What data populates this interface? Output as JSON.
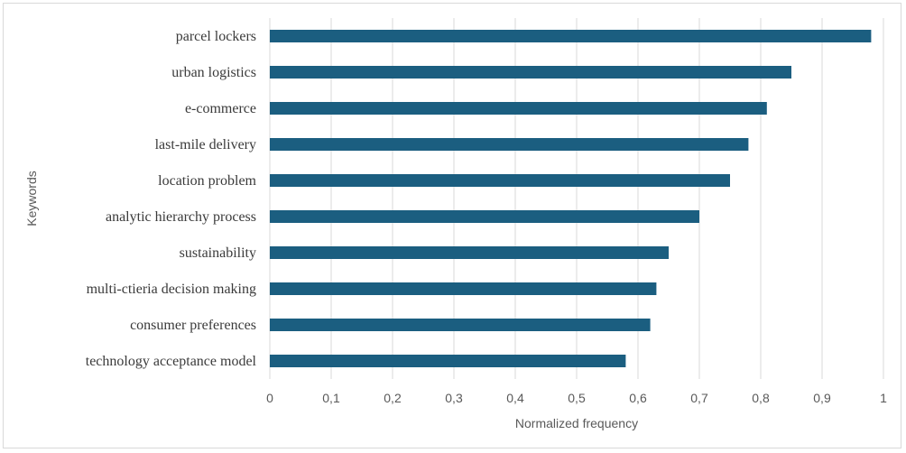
{
  "chart_data": {
    "type": "bar",
    "orientation": "horizontal",
    "categories": [
      "parcel lockers",
      "urban logistics",
      "e-commerce",
      "last-mile delivery",
      "location problem",
      "analytic hierarchy process",
      "sustainability",
      "multi-ctieria decision making",
      "consumer preferences",
      "technology acceptance model"
    ],
    "values": [
      0.98,
      0.85,
      0.81,
      0.78,
      0.75,
      0.7,
      0.65,
      0.63,
      0.62,
      0.58
    ],
    "xlabel": "Normalized frequency",
    "ylabel": "Keywords",
    "xlim": [
      0,
      1
    ],
    "xticks": [
      "0",
      "0,1",
      "0,2",
      "0,3",
      "0,4",
      "0,5",
      "0,6",
      "0,7",
      "0,8",
      "0,9",
      "1"
    ],
    "grid": "vertical",
    "bar_color": "#1b5e80",
    "grid_color": "#d9d9d9"
  }
}
